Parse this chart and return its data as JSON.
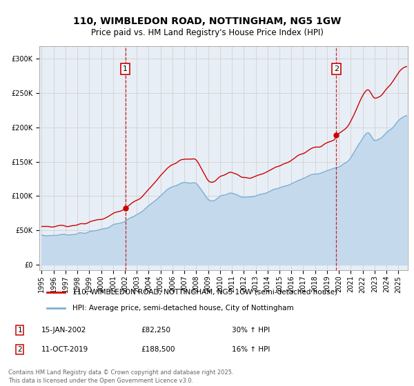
{
  "title": "110, WIMBLEDON ROAD, NOTTINGHAM, NG5 1GW",
  "subtitle": "Price paid vs. HM Land Registry's House Price Index (HPI)",
  "line1_label": "110, WIMBLEDON ROAD, NOTTINGHAM, NG5 1GW (semi-detached house)",
  "line2_label": "HPI: Average price, semi-detached house, City of Nottingham",
  "line1_color": "#cc0000",
  "line2_color": "#7bafd4",
  "fill2_color": "#c5d9ed",
  "vline_color": "#cc0000",
  "grid_color": "#cccccc",
  "background_color": "#ffffff",
  "plot_bg_color": "#e8eef5",
  "ytick_labels": [
    "£0",
    "£50K",
    "£100K",
    "£150K",
    "£200K",
    "£250K",
    "£300K"
  ],
  "yticks": [
    0,
    50000,
    100000,
    150000,
    200000,
    250000,
    300000
  ],
  "ylim": [
    -8000,
    318000
  ],
  "xlim_start": 1994.8,
  "xlim_end": 2025.8,
  "xticks": [
    1995,
    1996,
    1997,
    1998,
    1999,
    2000,
    2001,
    2002,
    2003,
    2004,
    2005,
    2006,
    2007,
    2008,
    2009,
    2010,
    2011,
    2012,
    2013,
    2014,
    2015,
    2016,
    2017,
    2018,
    2019,
    2020,
    2021,
    2022,
    2023,
    2024,
    2025
  ],
  "event1_x": 2002.04,
  "event1_y": 82250,
  "event1_label": "1",
  "event1_date": "15-JAN-2002",
  "event1_price": "£82,250",
  "event1_hpi": "30% ↑ HPI",
  "event2_x": 2019.79,
  "event2_y": 188500,
  "event2_label": "2",
  "event2_date": "11-OCT-2019",
  "event2_price": "£188,500",
  "event2_hpi": "16% ↑ HPI",
  "footnote": "Contains HM Land Registry data © Crown copyright and database right 2025.\nThis data is licensed under the Open Government Licence v3.0.",
  "title_fontsize": 10,
  "subtitle_fontsize": 8.5,
  "tick_fontsize": 7,
  "legend_fontsize": 7.5,
  "footnote_fontsize": 6
}
